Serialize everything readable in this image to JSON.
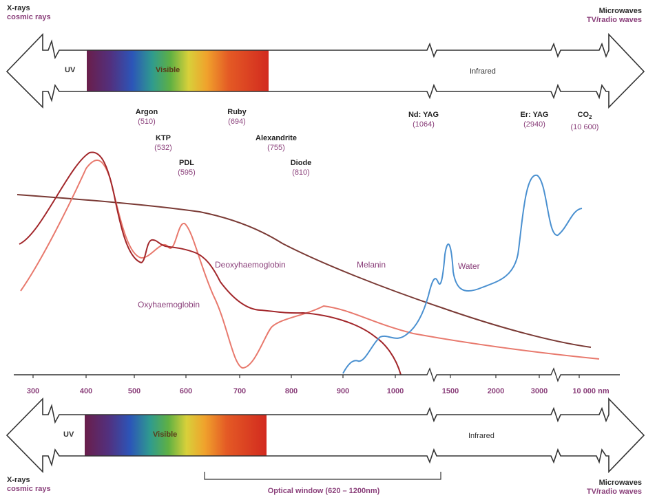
{
  "corners": {
    "top_left": [
      "X-rays",
      "cosmic rays"
    ],
    "top_right": [
      "Microwaves",
      "TV/radio waves"
    ],
    "bottom_left": [
      "X-rays",
      "cosmic rays"
    ],
    "bottom_right": [
      "Microwaves",
      "TV/radio waves"
    ]
  },
  "bands": {
    "uv": "UV",
    "visible": "Visible",
    "infrared": "Infrared"
  },
  "lasers": [
    {
      "name": "Argon",
      "wavelength": "(510)"
    },
    {
      "name": "KTP",
      "wavelength": "(532)"
    },
    {
      "name": "PDL",
      "wavelength": "(595)"
    },
    {
      "name": "Ruby",
      "wavelength": "(694)"
    },
    {
      "name": "Alexandrite",
      "wavelength": "(755)"
    },
    {
      "name": "Diode",
      "wavelength": "(810)"
    },
    {
      "name": "Nd: YAG",
      "wavelength": "(1064)"
    },
    {
      "name": "Er: YAG",
      "wavelength": "(2940)"
    },
    {
      "name": "CO",
      "subscript": "2",
      "wavelength": "(10 600)"
    }
  ],
  "axis_ticks": [
    "300",
    "400",
    "500",
    "600",
    "700",
    "800",
    "900",
    "1000",
    "1500",
    "2000",
    "3000",
    "10 000 nm"
  ],
  "curves": {
    "deoxy": "Deoxyhaemoglobin",
    "oxy": "Oxyhaemoglobin",
    "melanin": "Melanin",
    "water": "Water"
  },
  "optical_window": "Optical window (620 – 1200nm)",
  "colors": {
    "deoxy": "#a2272b",
    "oxy": "#e8796d",
    "melanin": "#7a3a35",
    "water": "#4a90d0",
    "label": "#8a3f7a"
  }
}
